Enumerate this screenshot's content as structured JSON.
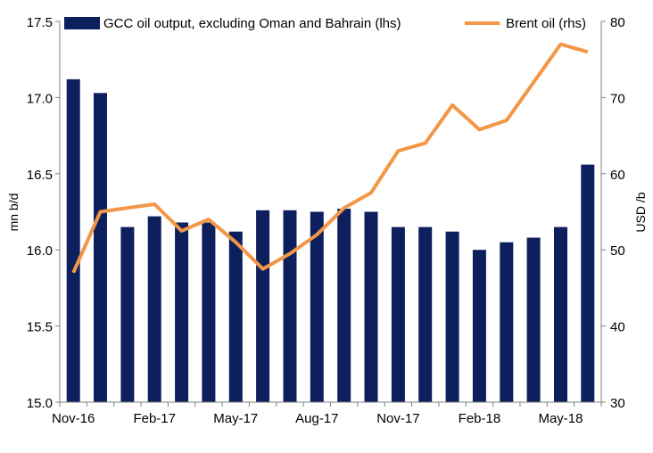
{
  "chart_data": {
    "type": "bar+line",
    "categories": [
      "Nov-16",
      "Dec-16",
      "Jan-17",
      "Feb-17",
      "Mar-17",
      "Apr-17",
      "May-17",
      "Jun-17",
      "Jul-17",
      "Aug-17",
      "Sep-17",
      "Oct-17",
      "Nov-17",
      "Dec-17",
      "Jan-18",
      "Feb-18",
      "Mar-18",
      "Apr-18",
      "May-18",
      "Jun-18"
    ],
    "x_tick_labels": [
      "Nov-16",
      "Feb-17",
      "May-17",
      "Aug-17",
      "Nov-17",
      "Feb-18",
      "May-18"
    ],
    "series": [
      {
        "name": "GCC oil output, excluding Oman and Bahrain (lhs)",
        "type": "bar",
        "axis": "left",
        "values": [
          17.12,
          17.03,
          16.15,
          16.22,
          16.18,
          16.18,
          16.12,
          16.26,
          16.26,
          16.25,
          16.27,
          16.25,
          16.15,
          16.15,
          16.12,
          16.0,
          16.05,
          16.08,
          16.15,
          16.56
        ]
      },
      {
        "name": "Brent oil (rhs)",
        "type": "line",
        "axis": "right",
        "values": [
          47.0,
          55.0,
          55.5,
          56.0,
          52.5,
          54.0,
          51.0,
          47.5,
          49.5,
          52.0,
          55.5,
          57.5,
          63.0,
          64.0,
          69.0,
          65.8,
          67.0,
          72.0,
          77.0,
          76.0
        ]
      }
    ],
    "y_left": {
      "label": "mn b/d",
      "min": 15.0,
      "max": 17.5,
      "ticks": [
        "15.0",
        "15.5",
        "16.0",
        "16.5",
        "17.0",
        "17.5"
      ]
    },
    "y_right": {
      "label": "USD /b",
      "min": 30,
      "max": 80,
      "ticks": [
        "30",
        "40",
        "50",
        "60",
        "70",
        "80"
      ]
    },
    "grid": false,
    "legend": "top",
    "colors": {
      "bar": "#0D1F5C",
      "line": "#F39647"
    }
  }
}
